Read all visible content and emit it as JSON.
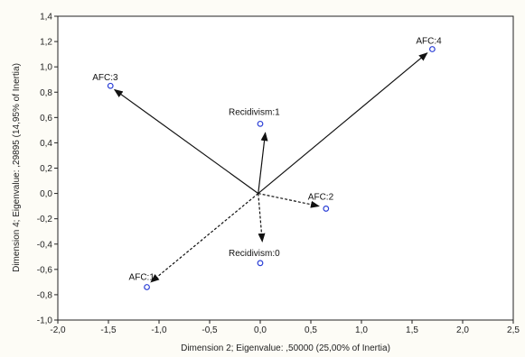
{
  "chart_data": {
    "type": "scatter",
    "title": "",
    "xlabel": "Dimension 2; Eigenvalue: ,50000 (25,00% of Inertia)",
    "ylabel": "Dimension 4; Eigenvalue: ,29895 (14,95% of Inertia)",
    "xlim": [
      -2.0,
      2.5
    ],
    "ylim": [
      -1.0,
      1.4
    ],
    "x_ticks": [
      -2.0,
      -1.5,
      -1.0,
      -0.5,
      0.0,
      0.5,
      1.0,
      1.5,
      2.0,
      2.5
    ],
    "y_ticks": [
      -1.0,
      -0.8,
      -0.6,
      -0.4,
      -0.2,
      0.0,
      0.2,
      0.4,
      0.6,
      0.8,
      1.0,
      1.2,
      1.4
    ],
    "x_tick_labels": [
      "-2,0",
      "-1,5",
      "-1,0",
      "-0,5",
      "0,0",
      "0,5",
      "1,0",
      "1,5",
      "2,0",
      "2,5"
    ],
    "y_tick_labels": [
      "-1,0",
      "-0,8",
      "-0,6",
      "-0,4",
      "-0,2",
      "0,0",
      "0,2",
      "0,4",
      "0,6",
      "0,8",
      "1,0",
      "1,2",
      "1,4"
    ],
    "grid": false,
    "points": [
      {
        "label": "AFC:4",
        "x": 1.7,
        "y": 1.14
      },
      {
        "label": "AFC:3",
        "x": -1.48,
        "y": 0.85
      },
      {
        "label": "Recidivism:1",
        "x": 0.0,
        "y": 0.55
      },
      {
        "label": "AFC:2",
        "x": 0.65,
        "y": -0.12
      },
      {
        "label": "Recidivism:0",
        "x": 0.0,
        "y": -0.55
      },
      {
        "label": "AFC:1",
        "x": -1.12,
        "y": -0.74
      }
    ],
    "arrows": [
      {
        "from": [
          -0.02,
          0.0
        ],
        "to": [
          1.65,
          1.11
        ],
        "style": "solid"
      },
      {
        "from": [
          -0.02,
          0.0
        ],
        "to": [
          -1.44,
          0.82
        ],
        "style": "solid"
      },
      {
        "from": [
          -0.02,
          0.0
        ],
        "to": [
          0.05,
          0.48
        ],
        "style": "solid"
      },
      {
        "from": [
          -0.02,
          0.0
        ],
        "to": [
          0.58,
          -0.1
        ],
        "style": "dashed"
      },
      {
        "from": [
          -0.02,
          0.0
        ],
        "to": [
          0.02,
          -0.38
        ],
        "style": "dashed"
      },
      {
        "from": [
          -0.02,
          0.0
        ],
        "to": [
          -1.08,
          -0.7
        ],
        "style": "dashed"
      }
    ],
    "colors": {
      "point": "#2b3fd6",
      "arrow": "#111111",
      "axis": "#222222"
    }
  }
}
